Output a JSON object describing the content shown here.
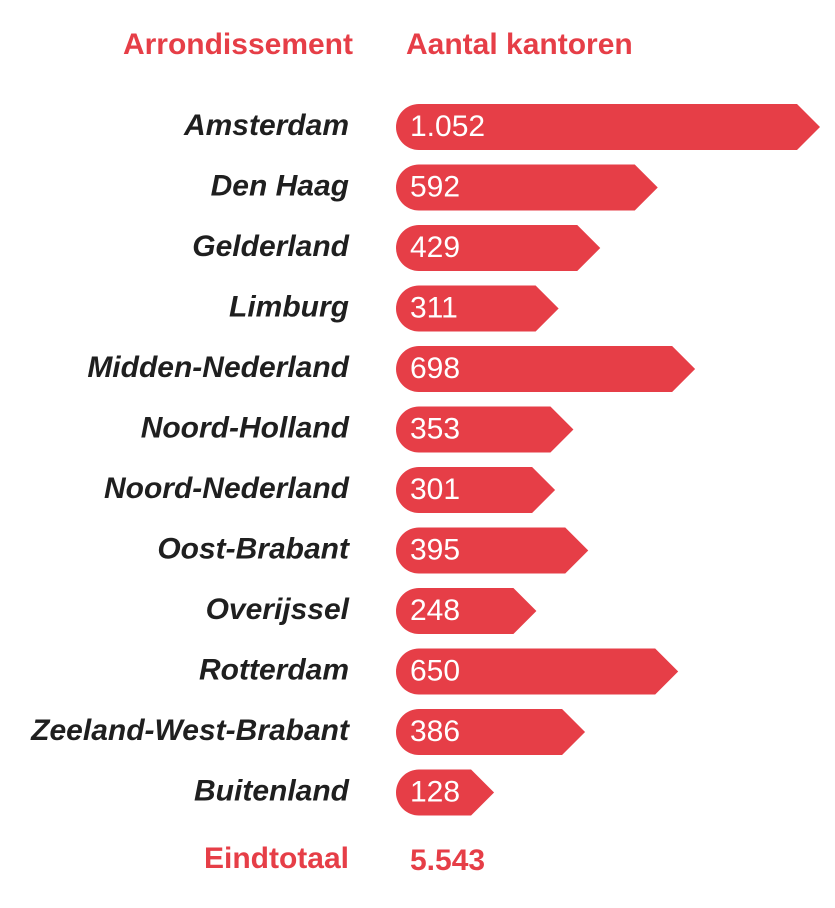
{
  "chart_data": {
    "type": "bar",
    "orientation": "horizontal",
    "ylabel": "Arrondissement",
    "xlabel": "Aantal kantoren",
    "categories": [
      "Amsterdam",
      "Den Haag",
      "Gelderland",
      "Limburg",
      "Midden-Nederland",
      "Noord-Holland",
      "Noord-Nederland",
      "Oost-Brabant",
      "Overijssel",
      "Rotterdam",
      "Zeeland-West-Brabant",
      "Buitenland"
    ],
    "values": [
      1052,
      592,
      429,
      311,
      698,
      353,
      301,
      395,
      248,
      650,
      386,
      128
    ],
    "value_labels": [
      "1.052",
      "592",
      "429",
      "311",
      "698",
      "353",
      "301",
      "395",
      "248",
      "650",
      "386",
      "128"
    ],
    "color": "#e63e47",
    "xlim": [
      -150,
      1052
    ],
    "total_label": "Eindtotaal",
    "total": "5.543"
  }
}
